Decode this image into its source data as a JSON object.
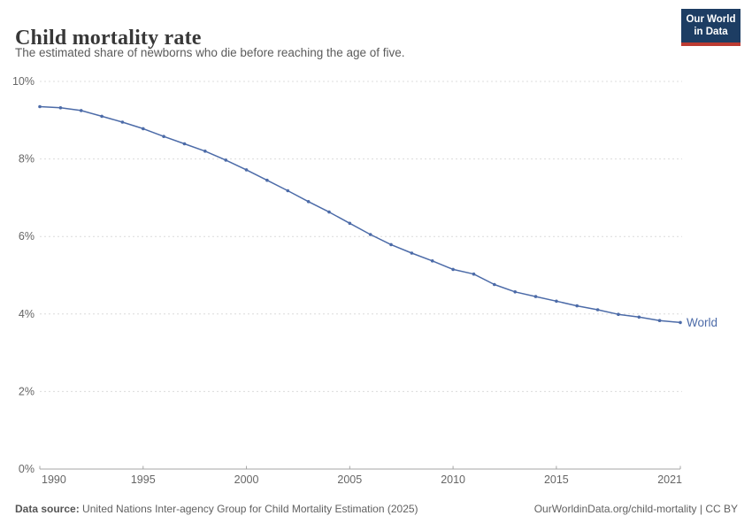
{
  "header": {
    "title": "Child mortality rate",
    "subtitle": "The estimated share of newborns who die before reaching the age of five.",
    "logo": {
      "line1": "Our World",
      "line2": "in Data",
      "bg_color": "#1d3d63",
      "accent_color": "#bc3b32"
    }
  },
  "chart_data": {
    "type": "line",
    "title": "Child mortality rate",
    "xlabel": "",
    "ylabel": "",
    "unit": "%",
    "xlim": [
      1990,
      2021
    ],
    "ylim": [
      0,
      10
    ],
    "yticks": [
      0,
      2,
      4,
      6,
      8,
      10
    ],
    "xticks": [
      1990,
      1995,
      2000,
      2005,
      2010,
      2015,
      2021
    ],
    "grid": "horizontal-dashed",
    "legend_position": "end-of-line",
    "series": [
      {
        "name": "World",
        "color": "#4c6ba8",
        "x": [
          1990,
          1991,
          1992,
          1993,
          1994,
          1995,
          1996,
          1997,
          1998,
          1999,
          2000,
          2001,
          2002,
          2003,
          2004,
          2005,
          2006,
          2007,
          2008,
          2009,
          2010,
          2011,
          2012,
          2013,
          2014,
          2015,
          2016,
          2017,
          2018,
          2019,
          2020,
          2021
        ],
        "values": [
          9.35,
          9.32,
          9.25,
          9.1,
          8.95,
          8.78,
          8.58,
          8.39,
          8.2,
          7.97,
          7.72,
          7.45,
          7.18,
          6.9,
          6.63,
          6.34,
          6.05,
          5.79,
          5.57,
          5.37,
          5.15,
          5.03,
          4.76,
          4.57,
          4.45,
          4.33,
          4.21,
          4.11,
          3.99,
          3.92,
          3.83,
          3.78
        ]
      }
    ],
    "colors": {
      "gridline": "#dcdcdc",
      "axis_line": "#a5a5a5",
      "tick_label": "#666666"
    }
  },
  "footer": {
    "datasource_label": "Data source:",
    "datasource_text": " United Nations Inter-agency Group for Child Mortality Estimation (2025)",
    "credit_link": "OurWorldinData.org/child-mortality",
    "credit_suffix": " | CC BY"
  }
}
